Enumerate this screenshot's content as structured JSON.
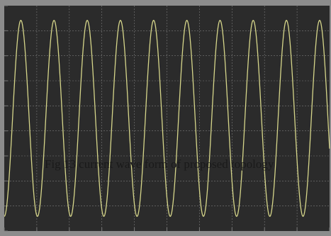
{
  "caption": "Fig 13 current wave form of proposed topology",
  "colors": {
    "plot_background": "#2b2b2b",
    "frame": "#8c8c8c",
    "grid": "#7a7a7a",
    "trace": "#d6d68a"
  },
  "chart_data": {
    "type": "line",
    "title": "",
    "xlabel": "",
    "ylabel": "",
    "grid": true,
    "grid_divisions": {
      "x": 10,
      "y": 9
    },
    "xlim": [
      0,
      9.8
    ],
    "ylim": [
      -1.15,
      1.15
    ],
    "series": [
      {
        "waveform": "sine",
        "amplitude": 1.0,
        "cycles_visible": 9.8,
        "phase_deg": 270
      }
    ]
  }
}
